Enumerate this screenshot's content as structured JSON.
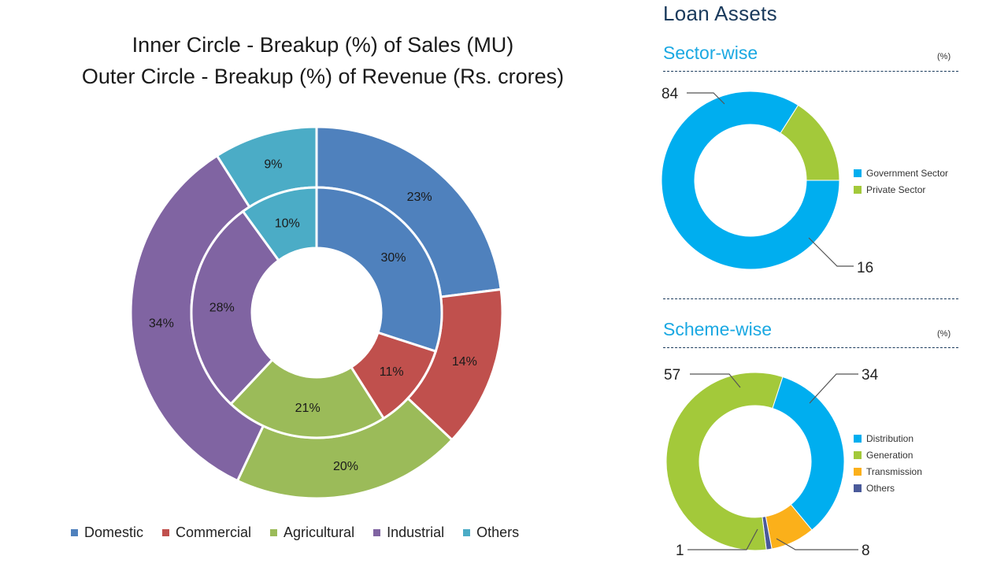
{
  "left_chart": {
    "title_line1": "Inner Circle - Breakup (%) of Sales (MU)",
    "title_line2": "Outer Circle - Breakup (%)  of Revenue (Rs. crores)"
  },
  "right_panel": {
    "heading": "Loan Assets",
    "sector_title": "Sector-wise",
    "sector_unit": "(%)",
    "scheme_title": "Scheme-wise",
    "scheme_unit": "(%)"
  },
  "colors": {
    "domestic": "#4f81bd",
    "commercial": "#c0504d",
    "agricultural": "#9bbb59",
    "industrial": "#8064a2",
    "others_left": "#4bacc6",
    "government": "#00aeef",
    "private": "#a3c93a",
    "distribution": "#00aeef",
    "generation": "#a3c93a",
    "transmission": "#fbb01a",
    "others_right": "#4a5a9a"
  },
  "chart_data": [
    {
      "type": "pie",
      "variant": "nested-donut",
      "title": "Inner Circle - Breakup (%) of Sales (MU) / Outer Circle - Breakup (%)  of Revenue (Rs. crores)",
      "categories": [
        "Domestic",
        "Commercial",
        "Agricultural",
        "Industrial",
        "Others"
      ],
      "series": [
        {
          "name": "Inner Circle - Breakup (%) of Sales (MU)",
          "values": [
            30,
            11,
            21,
            28,
            10
          ],
          "labels": [
            "30%",
            "11%",
            "21%",
            "28%",
            "10%"
          ]
        },
        {
          "name": "Outer Circle - Breakup (%) of Revenue (Rs. crores)",
          "values": [
            23,
            14,
            20,
            34,
            9
          ],
          "labels": [
            "23%",
            "14%",
            "20%",
            "34%",
            "9%"
          ]
        }
      ],
      "legend": "bottom"
    },
    {
      "type": "pie",
      "variant": "donut",
      "title": "Sector-wise",
      "unit": "(%)",
      "categories": [
        "Government Sector",
        "Private Sector"
      ],
      "values": [
        84,
        16
      ],
      "labels": [
        "84",
        "16"
      ],
      "legend": "right"
    },
    {
      "type": "pie",
      "variant": "donut",
      "title": "Scheme-wise",
      "unit": "(%)",
      "categories": [
        "Distribution",
        "Generation",
        "Transmission",
        "Others"
      ],
      "values": [
        34,
        57,
        8,
        1
      ],
      "labels": [
        "34",
        "57",
        "8",
        "1"
      ],
      "legend": "right"
    }
  ]
}
